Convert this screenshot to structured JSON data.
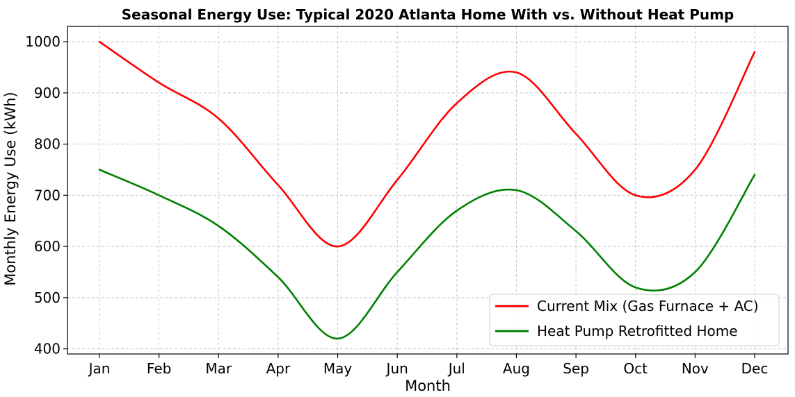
{
  "chart_data": {
    "type": "line",
    "title": "Seasonal Energy Use: Typical 2020 Atlanta Home With vs. Without Heat Pump",
    "xlabel": "Month",
    "ylabel": "Monthly Energy Use (kWh)",
    "categories": [
      "Jan",
      "Feb",
      "Mar",
      "Apr",
      "May",
      "Jun",
      "Jul",
      "Aug",
      "Sep",
      "Oct",
      "Nov",
      "Dec"
    ],
    "yticks": [
      400,
      500,
      600,
      700,
      800,
      900,
      1000
    ],
    "ylim": [
      390,
      1030
    ],
    "grid": true,
    "legend_position": "lower-right",
    "smooth": true,
    "series": [
      {
        "name": "Current Mix (Gas Furnace + AC)",
        "color": "#ff0000",
        "values": [
          1000,
          920,
          850,
          720,
          600,
          730,
          880,
          940,
          820,
          700,
          750,
          980
        ]
      },
      {
        "name": "Heat Pump Retrofitted Home",
        "color": "#008000",
        "values": [
          750,
          700,
          640,
          540,
          420,
          550,
          670,
          710,
          630,
          520,
          550,
          740
        ]
      }
    ]
  }
}
